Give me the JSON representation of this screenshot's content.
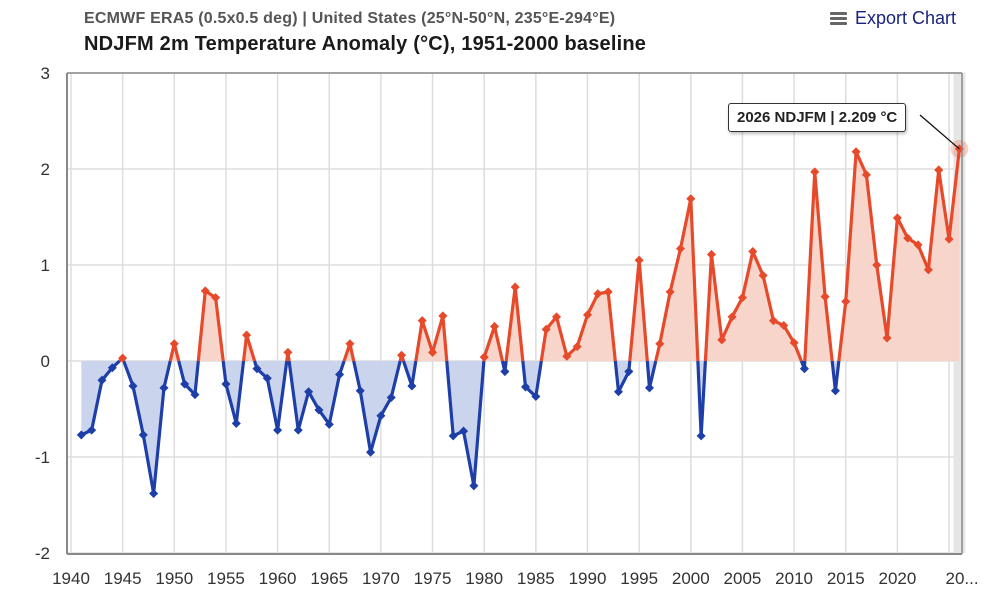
{
  "header": {
    "subtitle": "ECMWF ERA5 (0.5x0.5 deg) | United States (25°N-50°N, 235°E-294°E)",
    "title": "NDJFM 2m Temperature Anomaly (°C), 1951-2000 baseline",
    "export_label": "Export Chart",
    "export_icon": "hamburger-menu-icon"
  },
  "tooltip": {
    "text": "2026 NDJFM | 2.209 °C"
  },
  "colors": {
    "positive_line": "#e64a2a",
    "positive_fill": "#f8d3c8",
    "negative_line": "#1e3fa8",
    "negative_fill": "#c8d2ec",
    "grid": "#dddddd",
    "axis": "#888888"
  },
  "chart_data": {
    "type": "line",
    "title": "NDJFM 2m Temperature Anomaly (°C), 1951-2000 baseline",
    "subtitle": "ECMWF ERA5 (0.5x0.5 deg) | United States (25°N-50°N, 235°E-294°E)",
    "xlabel": "",
    "ylabel": "",
    "xlim": [
      1940,
      2026
    ],
    "ylim": [
      -2,
      3
    ],
    "grid": true,
    "x_ticks": [
      "1940",
      "1945",
      "1950",
      "1955",
      "1960",
      "1965",
      "1970",
      "1975",
      "1980",
      "1985",
      "1990",
      "1995",
      "2000",
      "2005",
      "2010",
      "2015",
      "2020",
      "20..."
    ],
    "y_ticks": [
      "3",
      "2",
      "1",
      "0",
      "-1",
      "-2"
    ],
    "threshold": 0,
    "x": [
      1941,
      1942,
      1943,
      1944,
      1945,
      1946,
      1947,
      1948,
      1949,
      1950,
      1951,
      1952,
      1953,
      1954,
      1955,
      1956,
      1957,
      1958,
      1959,
      1960,
      1961,
      1962,
      1963,
      1964,
      1965,
      1966,
      1967,
      1968,
      1969,
      1970,
      1971,
      1972,
      1973,
      1974,
      1975,
      1976,
      1977,
      1978,
      1979,
      1980,
      1981,
      1982,
      1983,
      1984,
      1985,
      1986,
      1987,
      1988,
      1989,
      1990,
      1991,
      1992,
      1993,
      1994,
      1995,
      1996,
      1997,
      1998,
      1999,
      2000,
      2001,
      2002,
      2003,
      2004,
      2005,
      2006,
      2007,
      2008,
      2009,
      2010,
      2011,
      2012,
      2013,
      2014,
      2015,
      2016,
      2017,
      2018,
      2019,
      2020,
      2021,
      2022,
      2023,
      2024,
      2025,
      2026
    ],
    "series": [
      {
        "name": "NDJFM anomaly",
        "values": [
          -0.77,
          -0.72,
          -0.2,
          -0.07,
          0.03,
          -0.26,
          -0.77,
          -1.38,
          -0.28,
          0.18,
          -0.24,
          -0.35,
          0.73,
          0.66,
          -0.24,
          -0.65,
          0.27,
          -0.08,
          -0.18,
          -0.72,
          0.09,
          -0.72,
          -0.32,
          -0.51,
          -0.66,
          -0.14,
          0.18,
          -0.31,
          -0.95,
          -0.57,
          -0.38,
          0.06,
          -0.26,
          0.42,
          0.09,
          0.47,
          -0.78,
          -0.73,
          -1.3,
          0.04,
          0.36,
          -0.11,
          0.77,
          -0.27,
          -0.37,
          0.33,
          0.46,
          0.05,
          0.15,
          0.48,
          0.7,
          0.72,
          -0.32,
          -0.11,
          1.05,
          -0.28,
          0.18,
          0.72,
          1.17,
          1.69,
          -0.78,
          1.11,
          0.22,
          0.46,
          0.66,
          1.14,
          0.89,
          0.42,
          0.37,
          0.19,
          -0.08,
          1.97,
          0.67,
          -0.31,
          0.62,
          2.18,
          1.94,
          1.0,
          0.24,
          1.49,
          1.28,
          1.21,
          0.95,
          1.99,
          1.27,
          2.209
        ]
      }
    ],
    "highlighted_point": {
      "x": 2026,
      "y": 2.209,
      "label": "2026 NDJFM | 2.209 °C"
    }
  }
}
